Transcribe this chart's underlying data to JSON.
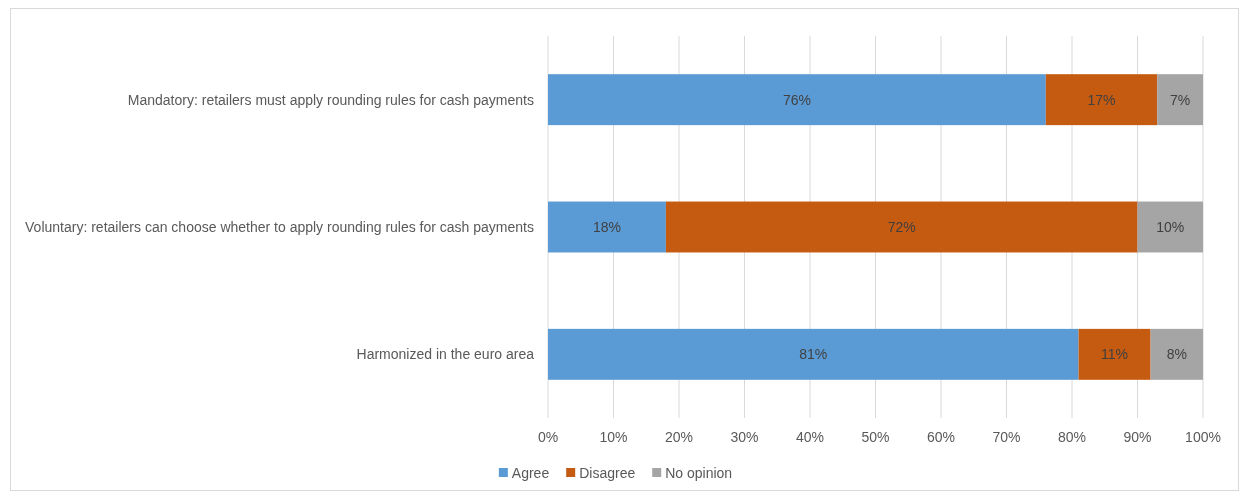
{
  "chart_data": {
    "type": "bar",
    "orientation": "horizontal",
    "stacked": true,
    "categories": [
      "Mandatory: retailers must apply rounding rules for cash payments",
      "Voluntary: retailers can choose whether to apply rounding rules for cash payments",
      "Harmonized in the euro area"
    ],
    "series": [
      {
        "name": "Agree",
        "color": "#5b9bd5",
        "values": [
          76,
          18,
          81
        ],
        "value_labels": [
          "76%",
          "18%",
          "81%"
        ]
      },
      {
        "name": "Disagree",
        "color": "#c55a11",
        "values": [
          17,
          72,
          11
        ],
        "value_labels": [
          "17%",
          "72%",
          "11%"
        ]
      },
      {
        "name": "No opinion",
        "color": "#a5a5a5",
        "values": [
          7,
          10,
          8
        ],
        "value_labels": [
          "7%",
          "10%",
          "8%"
        ]
      }
    ],
    "xlim": [
      0,
      100
    ],
    "xticks": [
      {
        "value": 0,
        "label": "0%"
      },
      {
        "value": 10,
        "label": "10%"
      },
      {
        "value": 20,
        "label": "20%"
      },
      {
        "value": 30,
        "label": "30%"
      },
      {
        "value": 40,
        "label": "40%"
      },
      {
        "value": 50,
        "label": "50%"
      },
      {
        "value": 60,
        "label": "60%"
      },
      {
        "value": 70,
        "label": "70%"
      },
      {
        "value": 80,
        "label": "80%"
      },
      {
        "value": 90,
        "label": "90%"
      },
      {
        "value": 100,
        "label": "100%"
      }
    ],
    "grid": "x",
    "legend": "bottom"
  }
}
